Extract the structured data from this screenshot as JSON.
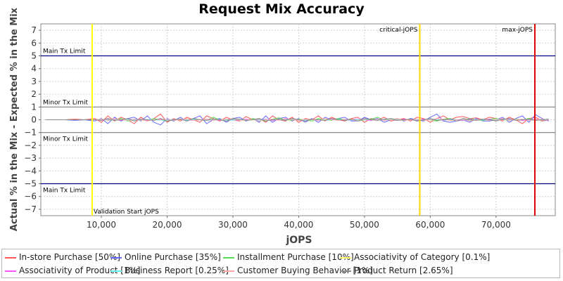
{
  "chart_data": {
    "type": "line",
    "title": "Request Mix Accuracy",
    "xlabel": "jOPS",
    "ylabel": "Actual % in the Mix - Expected % in the Mix",
    "xlim": [
      800,
      79000
    ],
    "ylim": [
      -7.5,
      7.5
    ],
    "x_ticks": [
      10000,
      20000,
      30000,
      40000,
      50000,
      60000,
      70000
    ],
    "x_tick_labels": [
      "10,000",
      "20,000",
      "30,000",
      "40,000",
      "50,000",
      "60,000",
      "70,000"
    ],
    "y_ticks": [
      7,
      6,
      5,
      4,
      3,
      2,
      1,
      0,
      -1,
      -2,
      -3,
      -4,
      -5,
      -6,
      -7
    ],
    "y_tick_labels": [
      "7",
      "6",
      "5",
      "4",
      "3",
      "2",
      "1",
      "0",
      "−1",
      "−2",
      "−3",
      "−4",
      "−5",
      "−6",
      "−7"
    ],
    "grid": true,
    "legend_position": "bottom",
    "reference_lines": [
      {
        "label": "Main Tx Limit",
        "y": 5,
        "color": "#000080"
      },
      {
        "label": "Minor Tx Limit",
        "y": 1,
        "color": "#808080"
      },
      {
        "label": "Minor Tx Limit",
        "y": -1,
        "color": "#808080"
      },
      {
        "label": "Main Tx Limit",
        "y": -5,
        "color": "#000080"
      }
    ],
    "vertical_markers": [
      {
        "label": "Validation Start jOPS",
        "x": 8600,
        "color": "#ffff00"
      },
      {
        "label": "critical-jOPS",
        "x": 58400,
        "color": "#ffd700"
      },
      {
        "label": "max-jOPS",
        "x": 75900,
        "color": "#e00000"
      }
    ],
    "x": [
      1500,
      3000,
      4500,
      6000,
      7500,
      9000,
      10000,
      11000,
      12000,
      13000,
      14000,
      15000,
      16000,
      17000,
      18000,
      19000,
      20000,
      21000,
      22000,
      23000,
      24000,
      25000,
      26000,
      27000,
      28000,
      29000,
      30000,
      31000,
      32000,
      33000,
      34000,
      35000,
      36000,
      37000,
      38000,
      39000,
      40000,
      41000,
      42000,
      43000,
      44000,
      45000,
      46000,
      47000,
      48000,
      49000,
      50000,
      51000,
      52000,
      53000,
      54000,
      55000,
      56000,
      57000,
      58000,
      59000,
      60000,
      61000,
      62000,
      63000,
      64000,
      65000,
      66000,
      67000,
      68000,
      69000,
      70000,
      71000,
      72000,
      73000,
      74000,
      75000,
      76000,
      77000,
      78000
    ],
    "series": [
      {
        "name": "In-store Purchase [50%]",
        "color": "#ff5555",
        "values": [
          0.0,
          0.0,
          0.0,
          0.05,
          0.0,
          0.1,
          -0.2,
          0.3,
          -0.1,
          0.2,
          0.0,
          -0.3,
          0.2,
          -0.1,
          0.1,
          0.45,
          -0.2,
          0.1,
          -0.1,
          0.2,
          0.0,
          -0.2,
          0.3,
          0.1,
          -0.1,
          0.2,
          0.0,
          -0.1,
          0.25,
          0.0,
          0.1,
          -0.2,
          0.3,
          0.0,
          -0.1,
          0.2,
          -0.2,
          0.1,
          0.0,
          0.3,
          -0.1,
          0.2,
          0.0,
          -0.1,
          0.1,
          0.2,
          -0.2,
          0.1,
          0.0,
          0.2,
          -0.1,
          0.0,
          0.1,
          -0.1,
          0.2,
          0.1,
          -0.2,
          0.1,
          0.3,
          0.0,
          0.2,
          0.25,
          0.1,
          0.15,
          0.0,
          0.2,
          0.1,
          -0.1,
          0.2,
          0.0,
          -0.3,
          0.1,
          0.2,
          -0.1,
          0.0
        ]
      },
      {
        "name": "Online Purchase [35%]",
        "color": "#6666ff",
        "values": [
          0.0,
          0.0,
          0.0,
          -0.05,
          0.0,
          -0.1,
          0.1,
          -0.3,
          0.2,
          -0.1,
          0.1,
          0.2,
          -0.1,
          0.3,
          -0.2,
          -0.4,
          0.1,
          -0.1,
          0.2,
          -0.1,
          0.1,
          0.3,
          -0.3,
          0.0,
          0.1,
          -0.2,
          0.1,
          0.2,
          -0.1,
          0.1,
          -0.2,
          0.3,
          -0.2,
          0.1,
          0.2,
          -0.1,
          0.1,
          -0.2,
          0.1,
          -0.2,
          0.2,
          0.0,
          0.1,
          0.2,
          -0.1,
          -0.1,
          0.2,
          0.0,
          0.1,
          -0.2,
          0.0,
          0.1,
          -0.1,
          0.1,
          0.0,
          -0.1,
          0.2,
          0.45,
          -0.1,
          -0.2,
          -0.1,
          0.0,
          -0.2,
          0.1,
          -0.1,
          -0.1,
          0.0,
          0.2,
          -0.2,
          0.1,
          0.3,
          -0.2,
          0.4,
          0.1,
          -0.1
        ]
      },
      {
        "name": "Installment Purchase [10%]",
        "color": "#55dd55",
        "values": [
          0.0,
          0.0,
          0.0,
          0.0,
          0.0,
          0.0,
          0.05,
          -0.05,
          0.0,
          0.1,
          -0.1,
          0.05,
          0.0,
          -0.05,
          0.1,
          0.0,
          -0.1,
          0.0,
          0.05,
          -0.05,
          0.1,
          0.0,
          -0.05,
          0.2,
          0.0,
          -0.1,
          0.05,
          0.0,
          -0.05,
          0.1,
          0.0,
          -0.1,
          0.05,
          0.15,
          0.0,
          -0.05,
          0.05,
          0.0,
          -0.1,
          0.1,
          0.0,
          -0.05,
          0.1,
          0.0,
          0.05,
          -0.1,
          0.0,
          0.05,
          0.2,
          -0.05,
          0.1,
          0.0,
          -0.05,
          0.05,
          -0.1,
          0.05,
          0.0,
          -0.1,
          0.05,
          0.1,
          0.0,
          -0.05,
          0.1,
          0.0,
          -0.05,
          0.05,
          0.1,
          0.0,
          -0.05,
          0.05,
          0.0,
          0.1,
          -0.05,
          0.0,
          0.05
        ]
      },
      {
        "name": "Associativity of Category [0.1%]",
        "color": "#ffff66",
        "values": [
          0.0,
          0.0,
          0.0,
          0.0,
          0.0,
          0.0,
          0.0,
          0.02,
          -0.02,
          0.0,
          0.02,
          0.0,
          -0.02,
          0.0,
          0.02,
          0.0,
          0.0,
          -0.02,
          0.0,
          0.02,
          0.0,
          0.0,
          -0.02,
          0.0,
          0.02,
          0.0,
          0.0,
          0.02,
          0.0,
          -0.02,
          0.0,
          0.02,
          0.0,
          0.0,
          -0.02,
          0.0,
          0.02,
          0.0,
          0.0,
          -0.02,
          0.0,
          0.02,
          0.0,
          0.0,
          -0.02,
          0.0,
          0.02,
          0.0,
          0.0,
          0.02,
          0.0,
          -0.02,
          0.0,
          0.0,
          0.02,
          0.0,
          0.0,
          -0.02,
          0.0,
          0.02,
          0.0,
          0.0,
          -0.02,
          0.0,
          0.02,
          0.0,
          0.0,
          -0.02,
          0.0,
          0.02,
          0.0,
          0.0,
          -0.02,
          0.0,
          0.0
        ]
      },
      {
        "name": "Associativity of Product [1%]",
        "color": "#ff55ff",
        "values": [
          0.0,
          0.0,
          0.0,
          0.0,
          0.0,
          0.0,
          -0.05,
          0.05,
          0.0,
          -0.05,
          0.05,
          0.0,
          0.05,
          -0.05,
          0.0,
          0.05,
          0.0,
          -0.05,
          0.05,
          0.0,
          -0.05,
          0.0,
          0.05,
          0.0,
          -0.05,
          0.05,
          0.0,
          -0.05,
          0.05,
          0.0,
          0.0,
          0.05,
          -0.05,
          0.0,
          0.05,
          0.0,
          -0.05,
          0.05,
          0.0,
          0.0,
          -0.05,
          0.05,
          0.0,
          -0.05,
          0.0,
          0.05,
          0.0,
          -0.05,
          0.05,
          0.0,
          0.0,
          -0.05,
          0.05,
          0.0,
          -0.05,
          0.05,
          0.0,
          0.0,
          -0.05,
          0.05,
          0.0,
          -0.05,
          0.05,
          0.0,
          0.0,
          0.05,
          -0.05,
          0.0,
          0.05,
          0.0,
          -0.05,
          0.0,
          0.05,
          0.0,
          -0.05
        ]
      },
      {
        "name": "Business Report [0.25%]",
        "color": "#66eeee",
        "values": [
          0.0,
          0.0,
          0.0,
          0.0,
          0.0,
          0.0,
          0.02,
          0.0,
          -0.02,
          0.0,
          0.03,
          -0.02,
          0.0,
          0.02,
          0.0,
          -0.03,
          0.0,
          0.02,
          0.0,
          -0.02,
          0.03,
          0.0,
          -0.02,
          0.0,
          0.02,
          0.0,
          -0.03,
          0.02,
          0.0,
          0.0,
          -0.02,
          0.03,
          0.0,
          -0.02,
          0.0,
          0.02,
          0.0,
          -0.02,
          0.03,
          0.0,
          -0.02,
          0.0,
          0.02,
          0.0,
          -0.03,
          0.02,
          0.0,
          0.0,
          -0.02,
          0.03,
          0.0,
          -0.02,
          0.0,
          0.02,
          0.0,
          -0.02,
          0.03,
          0.0,
          -0.02,
          0.0,
          0.02,
          0.0,
          -0.03,
          0.02,
          0.0,
          0.0,
          -0.02,
          0.03,
          0.0,
          -0.02,
          0.0,
          0.02,
          0.0,
          -0.02,
          0.0
        ]
      },
      {
        "name": "Customer Buying Behavior [1%]",
        "color": "#ffaaaa",
        "values": [
          0.0,
          0.0,
          0.0,
          0.0,
          0.0,
          0.0,
          0.05,
          -0.05,
          0.1,
          0.0,
          -0.05,
          0.05,
          0.0,
          -0.1,
          0.05,
          0.0,
          0.05,
          -0.05,
          0.0,
          0.1,
          -0.05,
          0.0,
          0.05,
          -0.05,
          0.0,
          0.05,
          0.1,
          -0.05,
          0.0,
          0.05,
          -0.1,
          0.0,
          0.05,
          -0.05,
          0.1,
          0.0,
          -0.05,
          0.05,
          0.0,
          -0.05,
          0.1,
          0.0,
          -0.05,
          0.05,
          0.0,
          -0.1,
          0.05,
          0.0,
          0.05,
          -0.05,
          0.0,
          0.1,
          -0.05,
          0.0,
          0.05,
          -0.05,
          0.0,
          0.1,
          0.05,
          -0.05,
          0.0,
          0.05,
          -0.1,
          0.0,
          0.05,
          -0.05,
          0.0,
          0.1,
          -0.05,
          0.0,
          0.05,
          -0.05,
          0.0,
          0.05,
          0.0
        ]
      },
      {
        "name": "Product Return [2.65%]",
        "color": "#888888",
        "values": [
          0.0,
          0.0,
          0.0,
          0.0,
          0.0,
          0.0,
          -0.05,
          0.1,
          -0.05,
          0.0,
          0.1,
          -0.1,
          0.05,
          0.0,
          -0.05,
          0.1,
          -0.1,
          0.0,
          0.05,
          -0.1,
          0.1,
          0.0,
          -0.05,
          0.05,
          0.0,
          -0.1,
          0.1,
          0.05,
          -0.05,
          0.0,
          0.1,
          -0.1,
          0.0,
          0.05,
          -0.05,
          0.1,
          0.0,
          -0.1,
          0.05,
          0.0,
          -0.05,
          0.1,
          0.0,
          -0.05,
          0.05,
          -0.1,
          0.1,
          0.0,
          -0.05,
          0.05,
          0.1,
          -0.05,
          0.0,
          0.05,
          -0.1,
          0.0,
          0.1,
          -0.05,
          0.0,
          0.05,
          -0.1,
          0.1,
          0.0,
          -0.05,
          0.05,
          0.0,
          -0.1,
          0.05,
          0.1,
          -0.05,
          0.0,
          0.05,
          -0.05,
          0.0,
          0.05
        ]
      }
    ]
  }
}
